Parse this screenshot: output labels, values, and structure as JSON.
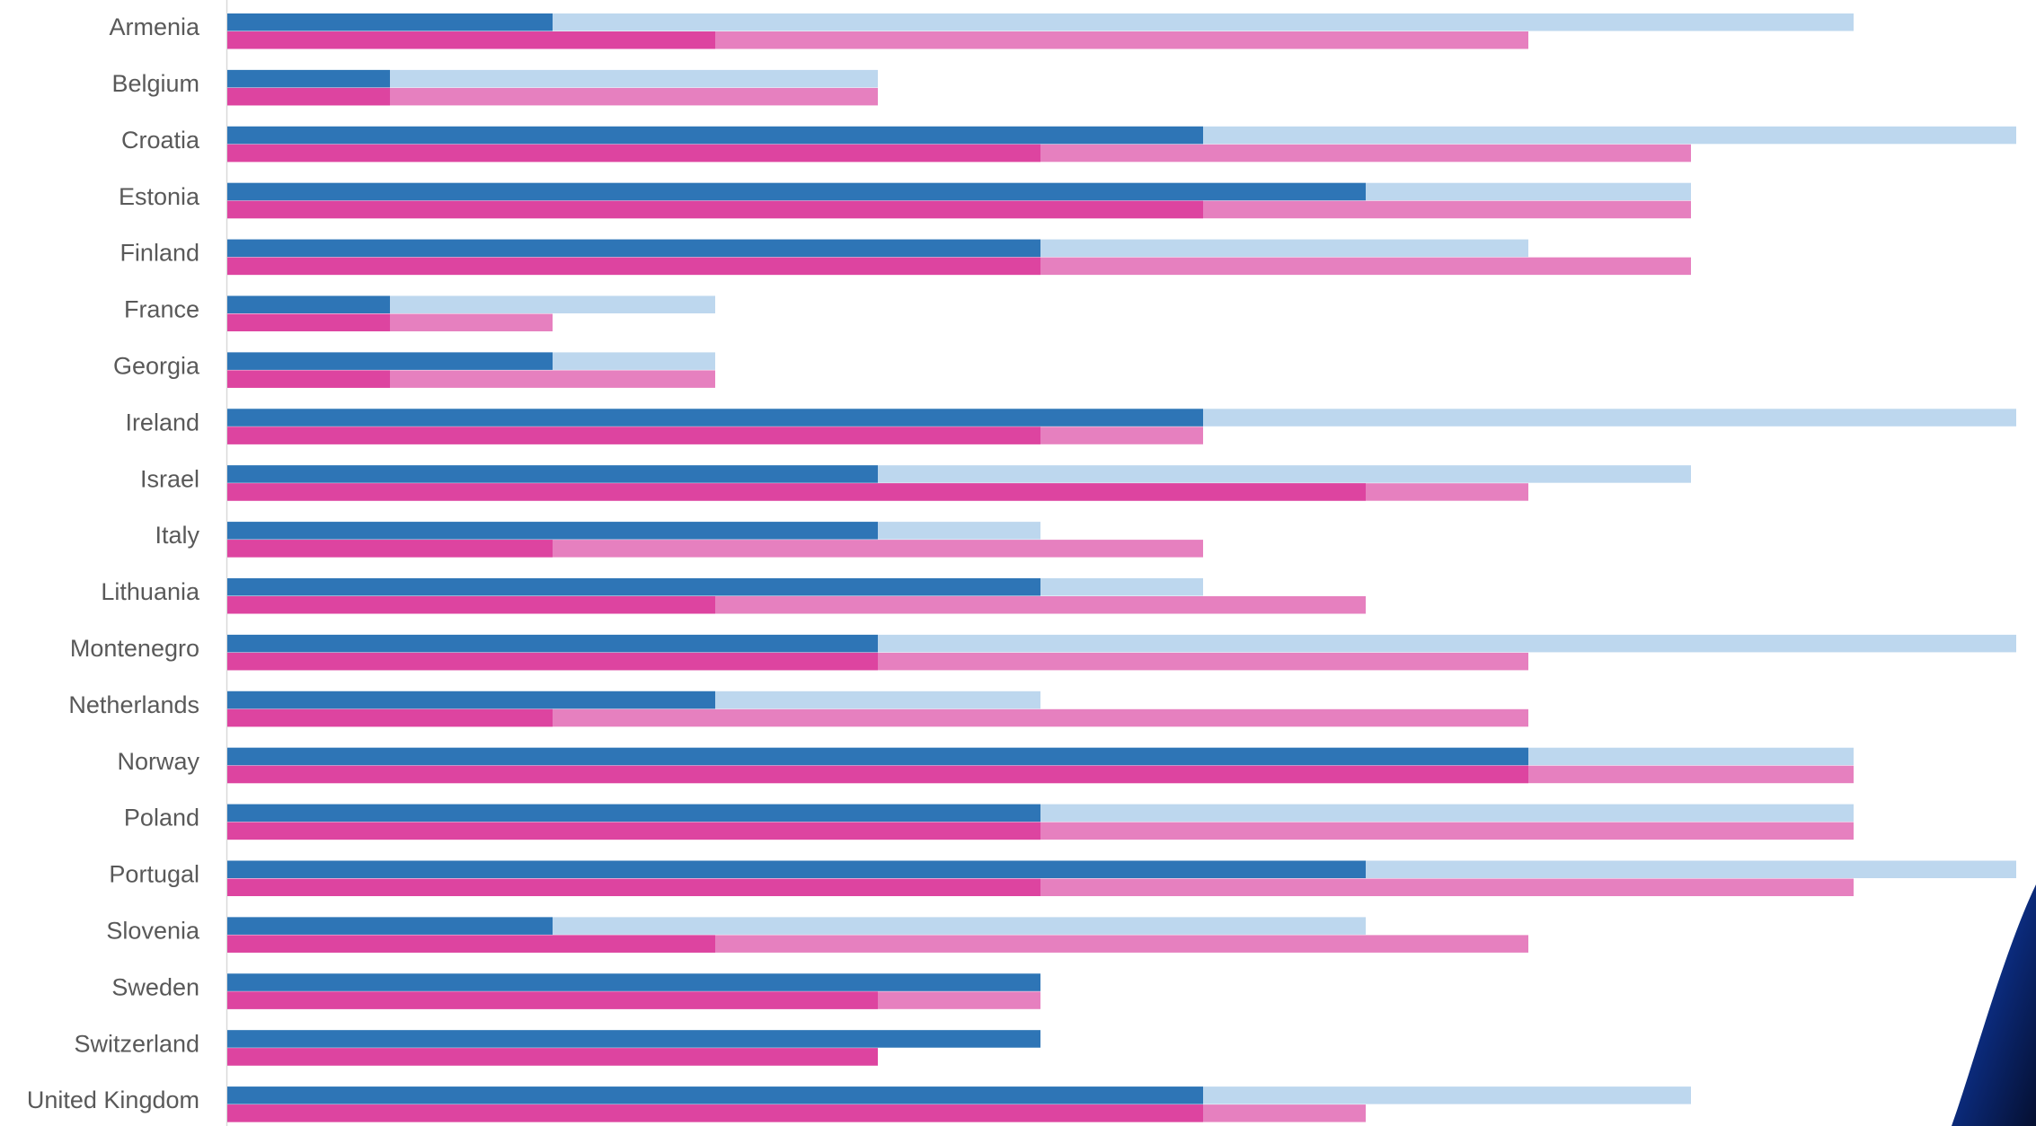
{
  "chart_data": {
    "type": "bar",
    "orientation": "horizontal",
    "title": "",
    "xlabel": "",
    "ylabel": "",
    "grid": false,
    "legend": "none",
    "xlim": [
      0,
      11
    ],
    "categories": [
      "Armenia",
      "Belgium",
      "Croatia",
      "Estonia",
      "Finland",
      "France",
      "Georgia",
      "Ireland",
      "Israel",
      "Italy",
      "Lithuania",
      "Montenegro",
      "Netherlands",
      "Norway",
      "Poland",
      "Portugal",
      "Slovenia",
      "Sweden",
      "Switzerland",
      "United Kingdom"
    ],
    "series": [
      {
        "color_dark": "#2e75b6",
        "color_light": "#bdd7ee",
        "dark_values": [
          2,
          1,
          6,
          7,
          5,
          1,
          2,
          6,
          4,
          4,
          5,
          4,
          3,
          8,
          5,
          7,
          2,
          5,
          5,
          6
        ],
        "light_values": [
          10,
          4,
          11,
          9,
          8,
          3,
          3,
          11,
          9,
          5,
          6,
          11,
          5,
          10,
          10,
          11,
          7,
          5,
          5,
          9
        ]
      },
      {
        "color_dark": "#dd44a0",
        "color_light": "#e680bf",
        "dark_values": [
          3,
          1,
          5,
          6,
          5,
          1,
          1,
          5,
          7,
          2,
          3,
          4,
          2,
          8,
          5,
          5,
          3,
          4,
          4,
          6
        ],
        "light_values": [
          8,
          4,
          9,
          9,
          9,
          2,
          3,
          6,
          8,
          6,
          7,
          8,
          8,
          10,
          10,
          10,
          8,
          5,
          4,
          7
        ]
      }
    ]
  },
  "decorations": {
    "corner_graphic": "blue-gradient-shape"
  }
}
